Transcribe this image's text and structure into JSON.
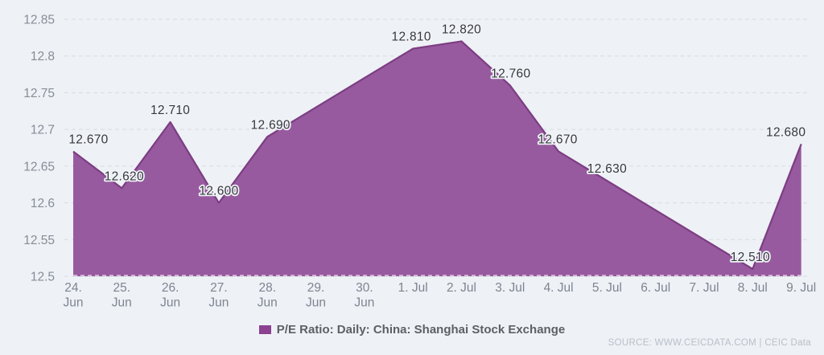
{
  "legend": {
    "label": "P/E Ratio: Daily: China: Shanghai Stock Exchange",
    "swatch_color": "#8C4191"
  },
  "source": {
    "text": "SOURCE: WWW.CEICDATA.COM | CEIC Data"
  },
  "chart_data": {
    "type": "area",
    "title": "",
    "series_name": "P/E Ratio: Daily: China: Shanghai Stock Exchange",
    "categories": [
      "24. Jun",
      "25. Jun",
      "26. Jun",
      "27. Jun",
      "28. Jun",
      "29. Jun",
      "30. Jun",
      "1. Jul",
      "2. Jul",
      "3. Jul",
      "4. Jul",
      "5. Jul",
      "6. Jul",
      "7. Jul",
      "8. Jul",
      "9. Jul"
    ],
    "category_tick_lines": [
      [
        "24.",
        "Jun"
      ],
      [
        "25.",
        "Jun"
      ],
      [
        "26.",
        "Jun"
      ],
      [
        "27.",
        "Jun"
      ],
      [
        "28.",
        "Jun"
      ],
      [
        "29.",
        "Jun"
      ],
      [
        "30.",
        "Jun"
      ],
      [
        "1. Jul"
      ],
      [
        "2. Jul"
      ],
      [
        "3. Jul"
      ],
      [
        "4. Jul"
      ],
      [
        "5. Jul"
      ],
      [
        "6. Jul"
      ],
      [
        "7. Jul"
      ],
      [
        "8. Jul"
      ],
      [
        "9. Jul"
      ]
    ],
    "values": [
      12.67,
      12.62,
      12.71,
      12.6,
      12.69,
      12.73,
      12.77,
      12.81,
      12.82,
      12.76,
      12.67,
      12.63,
      12.59,
      12.55,
      12.51,
      12.68
    ],
    "point_labels": [
      "12.670",
      "12.620",
      "12.710",
      "12.600",
      "12.690",
      null,
      null,
      "12.810",
      "12.820",
      "12.760",
      "12.670",
      "12.630",
      null,
      null,
      "12.510",
      "12.680"
    ],
    "estimated_unlabeled_points": [
      "29. Jun",
      "30. Jun",
      "6. Jul",
      "7. Jul"
    ],
    "label_dx": [
      19,
      3,
      0,
      0,
      4,
      0,
      0,
      -2,
      0,
      1,
      -1,
      0,
      0,
      0,
      -3,
      -19
    ],
    "ylim": [
      12.5,
      12.85
    ],
    "y_ticks": [
      "12.5",
      "12.55",
      "12.6",
      "12.65",
      "12.7",
      "12.75",
      "12.8",
      "12.85"
    ],
    "xlabel": "",
    "ylabel": "",
    "grid": "horizontal-dashed",
    "legend_position": "bottom-center",
    "colors": {
      "background": "#EEF1F5",
      "area_fill": "#975A9F",
      "line": "#7C3D83",
      "grid": "#D8DCE2",
      "y_axis_text": "#868D98",
      "x_axis_text": "#7E8591",
      "point_label_text": "#34383E",
      "point_label_halo": "#F1F3F6",
      "legend_text": "#5C6167",
      "source_text": "#B8C0CA"
    }
  }
}
